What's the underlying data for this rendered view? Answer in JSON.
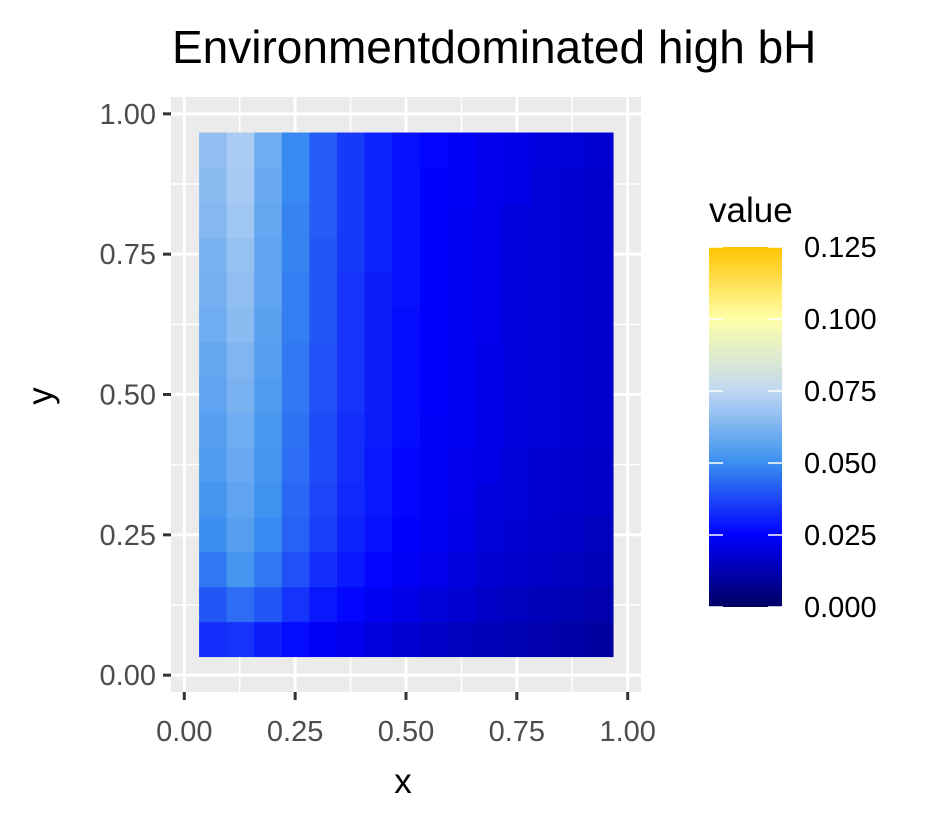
{
  "chart_data": {
    "type": "heatmap",
    "title": "Environmentdominated high bH",
    "xlabel": "x",
    "ylabel": "y",
    "xlim": [
      -0.03,
      1.03
    ],
    "ylim": [
      -0.03,
      1.03
    ],
    "x_ticks": [
      "0.00",
      "0.25",
      "0.50",
      "0.75",
      "1.00"
    ],
    "y_ticks": [
      "0.00",
      "0.25",
      "0.50",
      "0.75",
      "1.00"
    ],
    "x_tick_values": [
      0,
      0.25,
      0.5,
      0.75,
      1.0
    ],
    "y_tick_values": [
      0,
      0.25,
      0.5,
      0.75,
      1.0
    ],
    "grid": true,
    "grid_range": {
      "x": [
        0.0333,
        0.9667
      ],
      "y": [
        0.0333,
        0.9667
      ],
      "cols": 15,
      "rows": 15
    },
    "value_field": "value",
    "legend": {
      "title": "value",
      "position": "right",
      "breaks": [
        "0.000",
        "0.025",
        "0.050",
        "0.075",
        "0.100",
        "0.125"
      ],
      "break_values": [
        0,
        0.025,
        0.05,
        0.075,
        0.1,
        0.125
      ],
      "range": [
        0,
        0.125
      ],
      "colors": [
        "#000060",
        "#0000ff",
        "#3a8ff0",
        "#c0d8f2",
        "#ffffa8",
        "#ffc300"
      ],
      "color_stops": [
        0,
        0.2,
        0.4,
        0.6,
        0.8,
        1.0
      ]
    },
    "values": [
      [
        0.033,
        0.034,
        0.03,
        0.027,
        0.024,
        0.022,
        0.02,
        0.018,
        0.016,
        0.015,
        0.014,
        0.013,
        0.012,
        0.011,
        0.01
      ],
      [
        0.04,
        0.044,
        0.04,
        0.034,
        0.029,
        0.026,
        0.023,
        0.021,
        0.019,
        0.018,
        0.016,
        0.015,
        0.014,
        0.013,
        0.012
      ],
      [
        0.046,
        0.052,
        0.046,
        0.039,
        0.033,
        0.029,
        0.026,
        0.024,
        0.022,
        0.02,
        0.018,
        0.017,
        0.016,
        0.015,
        0.014
      ],
      [
        0.05,
        0.055,
        0.049,
        0.042,
        0.036,
        0.031,
        0.028,
        0.025,
        0.023,
        0.021,
        0.019,
        0.018,
        0.017,
        0.016,
        0.015
      ],
      [
        0.052,
        0.057,
        0.051,
        0.043,
        0.037,
        0.032,
        0.029,
        0.026,
        0.024,
        0.022,
        0.02,
        0.019,
        0.018,
        0.017,
        0.016
      ],
      [
        0.054,
        0.059,
        0.052,
        0.044,
        0.038,
        0.033,
        0.029,
        0.026,
        0.024,
        0.022,
        0.021,
        0.019,
        0.018,
        0.017,
        0.016
      ],
      [
        0.055,
        0.06,
        0.053,
        0.045,
        0.038,
        0.033,
        0.03,
        0.027,
        0.024,
        0.023,
        0.021,
        0.02,
        0.019,
        0.018,
        0.017
      ],
      [
        0.057,
        0.062,
        0.054,
        0.046,
        0.039,
        0.034,
        0.03,
        0.027,
        0.025,
        0.023,
        0.021,
        0.02,
        0.019,
        0.018,
        0.017
      ],
      [
        0.058,
        0.063,
        0.055,
        0.046,
        0.039,
        0.034,
        0.03,
        0.027,
        0.025,
        0.023,
        0.021,
        0.02,
        0.019,
        0.018,
        0.017
      ],
      [
        0.06,
        0.065,
        0.056,
        0.047,
        0.04,
        0.034,
        0.03,
        0.027,
        0.025,
        0.023,
        0.022,
        0.02,
        0.019,
        0.018,
        0.017
      ],
      [
        0.061,
        0.066,
        0.057,
        0.047,
        0.04,
        0.034,
        0.03,
        0.028,
        0.025,
        0.023,
        0.022,
        0.02,
        0.019,
        0.018,
        0.017
      ],
      [
        0.062,
        0.067,
        0.057,
        0.048,
        0.04,
        0.035,
        0.031,
        0.028,
        0.025,
        0.023,
        0.022,
        0.02,
        0.019,
        0.018,
        0.017
      ],
      [
        0.064,
        0.069,
        0.058,
        0.048,
        0.041,
        0.035,
        0.031,
        0.028,
        0.025,
        0.023,
        0.022,
        0.02,
        0.019,
        0.018,
        0.017
      ],
      [
        0.065,
        0.07,
        0.059,
        0.049,
        0.041,
        0.035,
        0.031,
        0.028,
        0.025,
        0.024,
        0.022,
        0.021,
        0.019,
        0.018,
        0.017
      ],
      [
        0.066,
        0.071,
        0.06,
        0.049,
        0.041,
        0.035,
        0.031,
        0.028,
        0.026,
        0.024,
        0.022,
        0.021,
        0.02,
        0.019,
        0.018
      ]
    ]
  }
}
